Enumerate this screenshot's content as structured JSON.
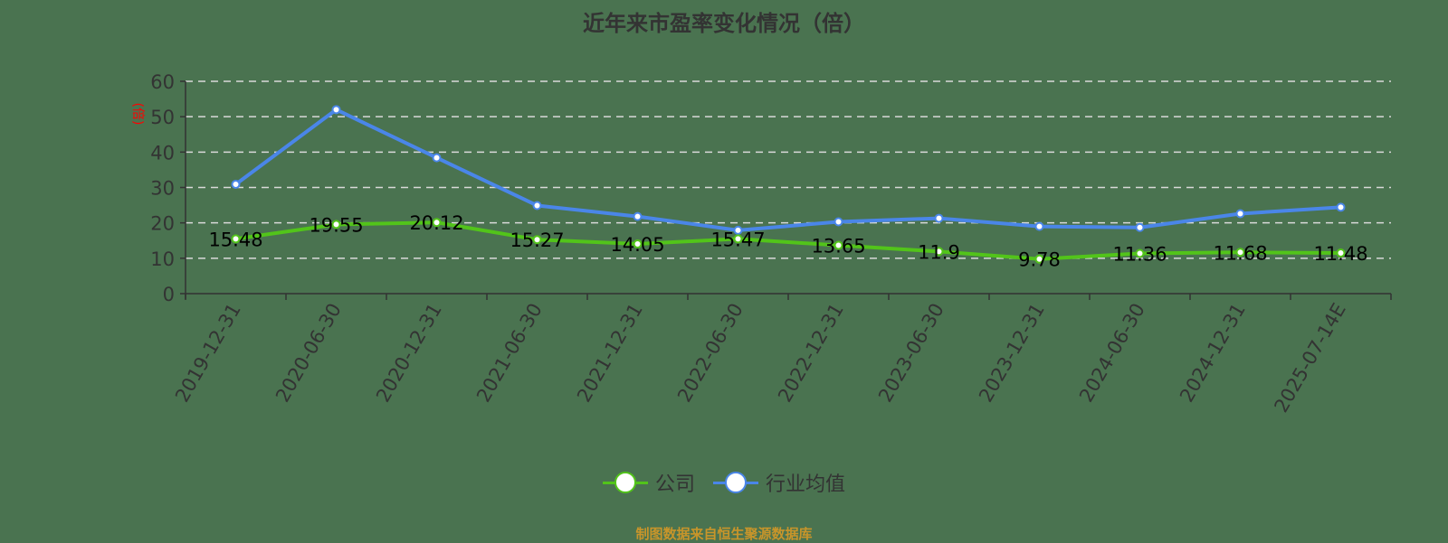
{
  "title": "近年来市盈率变化情况（倍）",
  "source": "制图数据来自恒生聚源数据库",
  "legend": [
    {
      "label": "公司",
      "color": "#52c41a"
    },
    {
      "label": "行业均值",
      "color": "#4a86e8"
    }
  ],
  "chart_data": {
    "type": "line",
    "title": "近年来市盈率变化情况（倍）",
    "xlabel": "",
    "ylabel": "(倍)",
    "ylim": [
      0,
      60
    ],
    "yticks": [
      0,
      10,
      20,
      30,
      40,
      50,
      60
    ],
    "grid": true,
    "legend_position": "bottom",
    "categories": [
      "2019-12-31",
      "2020-06-30",
      "2020-12-31",
      "2021-06-30",
      "2021-12-31",
      "2022-06-30",
      "2022-12-31",
      "2023-06-30",
      "2023-12-31",
      "2024-06-30",
      "2024-12-31",
      "2025-07-14E"
    ],
    "series": [
      {
        "name": "公司",
        "color": "#52c41a",
        "values": [
          15.48,
          19.55,
          20.12,
          15.27,
          14.05,
          15.47,
          13.65,
          11.9,
          9.78,
          11.36,
          11.68,
          11.48
        ],
        "labels": [
          "15.48",
          "19.55",
          "20.12",
          "15.27",
          "14.05",
          "15.47",
          "13.65",
          "11.9",
          "9.78",
          "11.36",
          "11.68",
          "11.48"
        ]
      },
      {
        "name": "行业均值",
        "color": "#4a86e8",
        "values": [
          30.9,
          52.0,
          38.4,
          24.9,
          21.8,
          17.9,
          20.3,
          21.3,
          19.0,
          18.7,
          22.6,
          24.4
        ]
      }
    ]
  }
}
